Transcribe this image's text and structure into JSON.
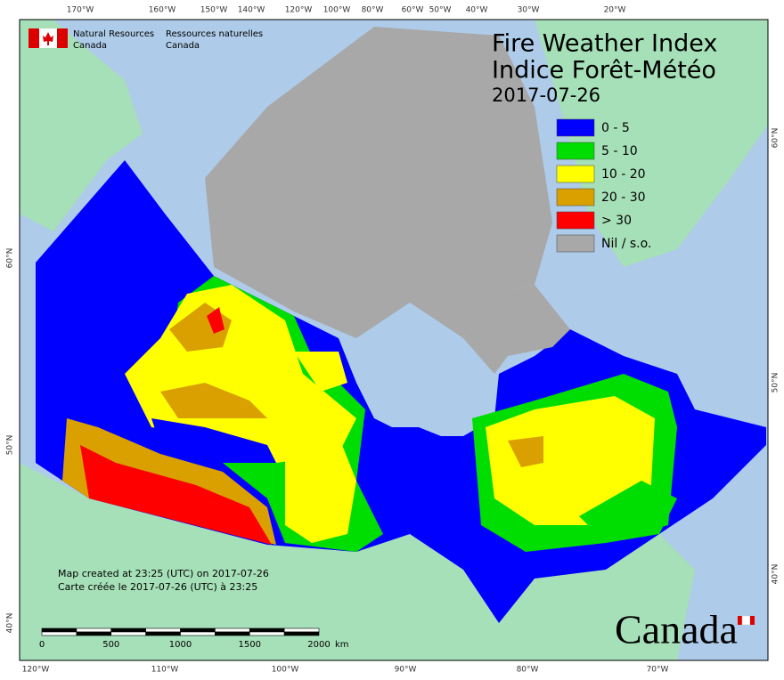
{
  "header": {
    "agency_en": [
      "Natural Resources",
      "Canada"
    ],
    "agency_fr": [
      "Ressources naturelles",
      "Canada"
    ]
  },
  "title": {
    "en": "Fire Weather Index",
    "fr": "Indice Forêt-Météo",
    "date": "2017-07-26"
  },
  "legend": [
    {
      "label": "0 - 5",
      "color": "#0000ff"
    },
    {
      "label": "5 - 10",
      "color": "#00dd00"
    },
    {
      "label": "10 - 20",
      "color": "#ffff00"
    },
    {
      "label": "20 - 30",
      "color": "#d9a000"
    },
    {
      "label": "> 30",
      "color": "#ff0000"
    },
    {
      "label": "Nil / s.o.",
      "color": "#a8a8a8"
    }
  ],
  "top_longitudes": [
    "170°W",
    "160°W",
    "150°W",
    "140°W",
    "120°W",
    "100°W",
    "80°W",
    "60°W",
    "50°W",
    "40°W",
    "30°W",
    "20°W"
  ],
  "bottom_longitudes": [
    "120°W",
    "110°W",
    "100°W",
    "90°W",
    "80°W",
    "70°W"
  ],
  "left_latitudes": [
    "60°N",
    "50°N",
    "40°N"
  ],
  "right_latitudes": [
    "60°N",
    "50°N",
    "40°N"
  ],
  "credits": [
    "Map created at 23:25 (UTC) on 2017-07-26",
    "Carte créée le 2017-07-26 (UTC) à 23:25"
  ],
  "scale_bar": {
    "labels": [
      "0",
      "500",
      "1000",
      "1500",
      "2000"
    ],
    "unit": "km"
  },
  "wordmark": "Canada"
}
